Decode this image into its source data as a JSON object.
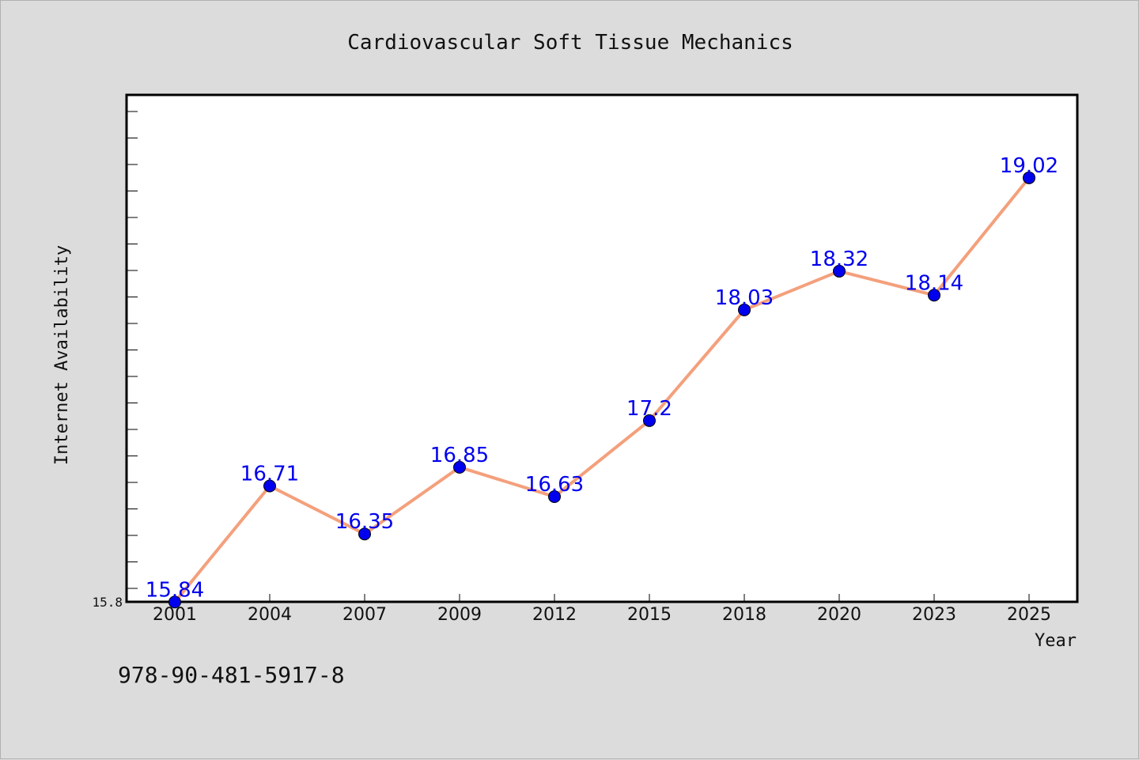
{
  "chart_data": {
    "type": "line",
    "title": "Cardiovascular Soft Tissue Mechanics",
    "xlabel": "Year",
    "ylabel": "Internet Availability",
    "categories": [
      "2001",
      "2004",
      "2007",
      "2009",
      "2012",
      "2015",
      "2018",
      "2020",
      "2023",
      "2025"
    ],
    "series": [
      {
        "values": [
          15.84,
          16.71,
          16.35,
          16.85,
          16.63,
          17.2,
          18.03,
          18.32,
          18.14,
          19.02
        ],
        "data_labels": [
          "15.84",
          "16.71",
          "16.35",
          "16.85",
          "16.63",
          "17.2",
          "18.03",
          "18.32",
          "18.14",
          "19.02"
        ],
        "line_color": "#f4a07c",
        "marker_color": "#0000ee"
      }
    ],
    "ylim": [
      15.8,
      19.6
    ],
    "ytick_labels": [
      "15.8"
    ],
    "grid": false,
    "legend": "none"
  },
  "footer": {
    "isbn": "978-90-481-5917-8"
  },
  "colors": {
    "background": "#dcdcdc",
    "plot_background": "#ffffff",
    "axis": "#000000"
  }
}
